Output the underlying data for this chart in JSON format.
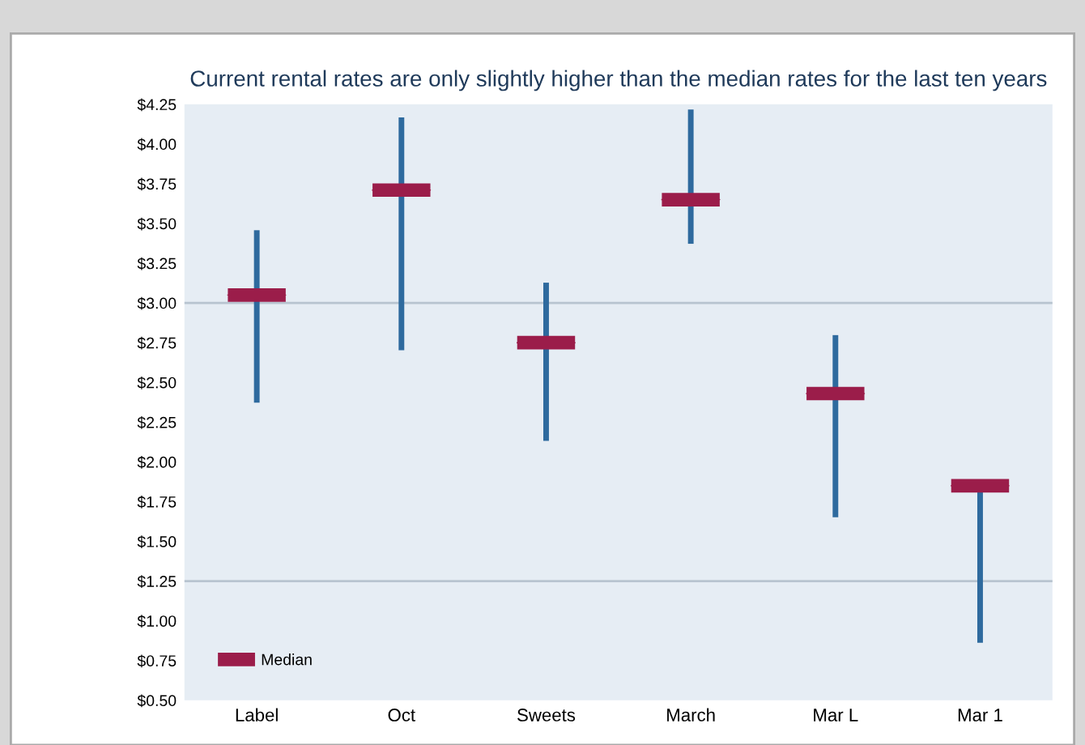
{
  "chart_data": {
    "type": "box",
    "title": "Current rental rates are only slightly higher than the median rates for the last ten years",
    "categories": [
      "Label",
      "Oct",
      "Sweets",
      "March",
      "Mar L",
      "Mar 1"
    ],
    "color": "#2e6a9e",
    "series": [
      {
        "name": "Median",
        "color": "#9b1d4a",
        "boxes": [
          {
            "low": 2.39,
            "q1": 3.05,
            "median": 3.05,
            "q3": 3.05,
            "high": 3.44
          },
          {
            "low": 2.72,
            "q1": 3.71,
            "median": 3.71,
            "q3": 3.71,
            "high": 4.15
          },
          {
            "low": 2.15,
            "q1": 2.75,
            "median": 2.75,
            "q3": 2.75,
            "high": 3.11
          },
          {
            "low": 3.39,
            "q1": 3.65,
            "median": 3.65,
            "q3": 3.65,
            "high": 4.2
          },
          {
            "low": 1.67,
            "q1": 2.43,
            "median": 2.43,
            "q3": 2.43,
            "high": 2.78
          },
          {
            "low": 0.88,
            "q1": 1.85,
            "median": 1.85,
            "q3": 1.85,
            "high": 1.86
          }
        ]
      }
    ],
    "ylim": [
      0.5,
      4.25
    ],
    "yticks": [
      {
        "value": 4.25,
        "label": "$4.25"
      },
      {
        "value": 4.0,
        "label": "$4.00"
      },
      {
        "value": 3.75,
        "label": "$3.75"
      },
      {
        "value": 3.5,
        "label": "$3.50"
      },
      {
        "value": 3.25,
        "label": "$3.25"
      },
      {
        "value": 3.0,
        "label": "$3.00"
      },
      {
        "value": 2.75,
        "label": "$2.75"
      },
      {
        "value": 2.5,
        "label": "$2.50"
      },
      {
        "value": 2.25,
        "label": "$2.25"
      },
      {
        "value": 2.0,
        "label": "$2.00"
      },
      {
        "value": 1.75,
        "label": "$1.75"
      },
      {
        "value": 1.5,
        "label": "$1.50"
      },
      {
        "value": 1.25,
        "label": "$1.25"
      },
      {
        "value": 1.0,
        "label": "$1.00"
      },
      {
        "value": 0.75,
        "label": "$0.75"
      },
      {
        "value": 0.5,
        "label": "$0.50"
      }
    ],
    "ref_lines": [
      {
        "axis": "y",
        "value": 3.0,
        "color": "#b8c4d0"
      },
      {
        "axis": "y",
        "value": 1.25,
        "color": "#b8c4d0"
      }
    ],
    "legend": "bottom left"
  }
}
